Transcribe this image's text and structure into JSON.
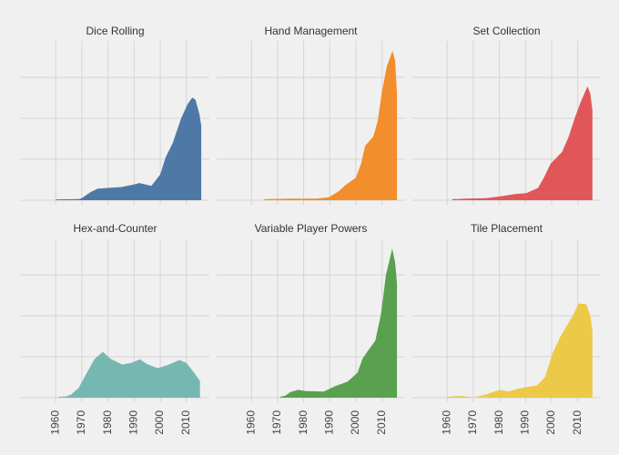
{
  "chart_data": {
    "type": "area",
    "title": "",
    "xlabel": "",
    "ylabel": "",
    "xlim": [
      1946.7,
      2018.8
    ],
    "ylim": [
      0,
      3.9
    ],
    "xticks": [
      "1960",
      "1970",
      "1980",
      "1990",
      "2000",
      "2010"
    ],
    "xtick_values": [
      1960,
      1970,
      1980,
      1990,
      2000,
      2010
    ],
    "ygrid": [
      0,
      1,
      2,
      3
    ],
    "grid": true,
    "panels": [
      {
        "name": "Dice Rolling",
        "color": "#4e79a7",
        "x": [
          1960,
          1969,
          1970,
          1973.4,
          1976,
          1980,
          1985,
          1989.7,
          1992,
          1996.6,
          2000,
          2002,
          2004.8,
          2008,
          2010.5,
          2012.3,
          2013.5,
          2015,
          2015.7
        ],
        "y": [
          0.02,
          0.03,
          0.05,
          0.2,
          0.28,
          0.3,
          0.32,
          0.38,
          0.42,
          0.35,
          0.63,
          1.04,
          1.4,
          2.0,
          2.35,
          2.51,
          2.45,
          2.1,
          1.82
        ]
      },
      {
        "name": "Hand Management",
        "color": "#f28e2b",
        "x": [
          1965,
          1967,
          1975,
          1985,
          1989.6,
          1993,
          1996.6,
          2000,
          2002,
          2003.5,
          2006.6,
          2008.3,
          2010,
          2011.8,
          2014,
          2015,
          2015.7
        ],
        "y": [
          0.03,
          0.03,
          0.04,
          0.04,
          0.07,
          0.2,
          0.4,
          0.55,
          0.9,
          1.33,
          1.55,
          1.93,
          2.67,
          3.26,
          3.65,
          3.4,
          2.6
        ]
      },
      {
        "name": "Set Collection",
        "color": "#e15759",
        "x": [
          1962,
          1964,
          1967,
          1975,
          1981,
          1986,
          1990.3,
          1994.8,
          1997,
          1999.6,
          2004,
          2006.5,
          2008.8,
          2011,
          2013.7,
          2014.8,
          2015.6
        ],
        "y": [
          0.03,
          0.03,
          0.04,
          0.05,
          0.1,
          0.15,
          0.17,
          0.3,
          0.55,
          0.89,
          1.18,
          1.55,
          2.0,
          2.38,
          2.78,
          2.6,
          2.2
        ]
      },
      {
        "name": "Hex-and-Counter",
        "color": "#76b7b2",
        "x": [
          1961,
          1964,
          1966,
          1968.8,
          1971,
          1974.8,
          1978,
          1981,
          1985.4,
          1989,
          1992.2,
          1995,
          1999,
          2003,
          2007.3,
          2010,
          2012.6,
          2015.2
        ],
        "y": [
          0.02,
          0.03,
          0.08,
          0.24,
          0.5,
          0.94,
          1.12,
          0.95,
          0.81,
          0.85,
          0.94,
          0.82,
          0.72,
          0.8,
          0.92,
          0.85,
          0.64,
          0.41
        ]
      },
      {
        "name": "Variable Player Powers",
        "color": "#59a14f",
        "x": [
          1971,
          1973,
          1975,
          1977.9,
          1981,
          1987.7,
          1992,
          1996.8,
          2000.6,
          2002.5,
          2004.4,
          2007.4,
          2009.6,
          2011.5,
          2013.9,
          2015,
          2015.7
        ],
        "y": [
          0.02,
          0.05,
          0.14,
          0.19,
          0.16,
          0.15,
          0.28,
          0.39,
          0.61,
          0.95,
          1.13,
          1.39,
          2.05,
          3.0,
          3.64,
          3.3,
          2.79
        ]
      },
      {
        "name": "Tile Placement",
        "color": "#edc948",
        "x": [
          1960,
          1962.7,
          1966,
          1970.2,
          1975,
          1980,
          1983.6,
          1987,
          1990.6,
          1994.4,
          1997.4,
          2000.4,
          2003.4,
          2006.5,
          2008.5,
          2010.3,
          2013.3,
          2014.8,
          2015.6
        ],
        "y": [
          0.02,
          0.04,
          0.04,
          0.01,
          0.08,
          0.19,
          0.15,
          0.22,
          0.26,
          0.3,
          0.5,
          1.09,
          1.5,
          1.83,
          2.05,
          2.3,
          2.28,
          2.0,
          1.64
        ]
      }
    ]
  }
}
